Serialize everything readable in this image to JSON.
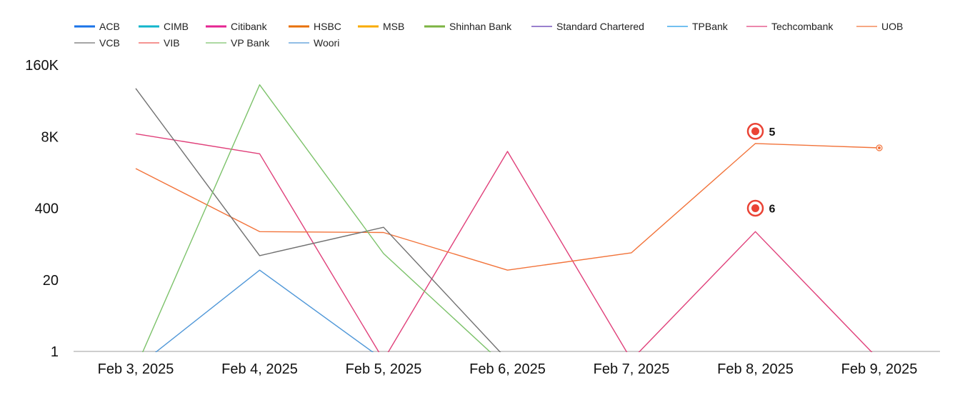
{
  "chart_data": {
    "type": "line",
    "title": "",
    "xlabel": "",
    "ylabel": "",
    "y_scale": "log",
    "y_ticks": [
      1,
      20,
      400,
      8000,
      160000
    ],
    "y_tick_labels": [
      "1",
      "20",
      "400",
      "8K",
      "160K"
    ],
    "ylim": [
      1,
      160000
    ],
    "grid": false,
    "legend_position": "top",
    "categories": [
      "Feb 3, 2025",
      "Feb 4, 2025",
      "Feb 5, 2025",
      "Feb 6, 2025",
      "Feb 7, 2025",
      "Feb 8, 2025",
      "Feb 9, 2025"
    ],
    "series": [
      {
        "name": "ACB",
        "color": "#1a73e8",
        "legend_style": "bold",
        "values": [
          null,
          null,
          null,
          null,
          null,
          null,
          null
        ]
      },
      {
        "name": "CIMB",
        "color": "#12b5cb",
        "legend_style": "bold",
        "values": [
          null,
          null,
          null,
          null,
          null,
          null,
          null
        ]
      },
      {
        "name": "Citibank",
        "color": "#e52592",
        "legend_style": "bold",
        "values": [
          null,
          null,
          null,
          null,
          null,
          null,
          null
        ]
      },
      {
        "name": "HSBC",
        "color": "#e8710a",
        "legend_style": "bold",
        "values": [
          null,
          null,
          null,
          null,
          null,
          null,
          null
        ]
      },
      {
        "name": "MSB",
        "color": "#f9ab00",
        "legend_style": "bold",
        "values": [
          null,
          null,
          null,
          null,
          null,
          null,
          null
        ]
      },
      {
        "name": "Shinhan Bank",
        "color": "#7cb342",
        "legend_style": "bold",
        "values": [
          null,
          null,
          null,
          null,
          null,
          null,
          null
        ]
      },
      {
        "name": "Standard Chartered",
        "color": "#5e35b1",
        "legend_style": "thin",
        "values": [
          null,
          null,
          null,
          null,
          null,
          null,
          null
        ]
      },
      {
        "name": "TPBank",
        "color": "#1e9be8",
        "legend_style": "thin",
        "values": [
          null,
          null,
          null,
          null,
          null,
          null,
          null
        ]
      },
      {
        "name": "Techcombank",
        "color": "#e0407a",
        "legend_style": "thin",
        "values": [
          9000,
          3900,
          0.7,
          4300,
          0.7,
          150,
          0.7
        ]
      },
      {
        "name": "UOB",
        "color": "#f2733a",
        "legend_style": "thin",
        "values": [
          2100,
          150,
          145,
          30,
          62,
          6000,
          5000
        ]
      },
      {
        "name": "VCB",
        "color": "#707070",
        "legend_style": "thin",
        "values": [
          60000,
          55,
          180,
          0.7,
          null,
          null,
          null
        ]
      },
      {
        "name": "VIB",
        "color": "#ef5350",
        "legend_style": "thin",
        "values": [
          null,
          null,
          null,
          null,
          null,
          null,
          null
        ]
      },
      {
        "name": "VP Bank",
        "color": "#7cc26a",
        "legend_style": "thin",
        "values": [
          0.5,
          70000,
          60,
          0.5,
          null,
          null,
          null
        ]
      },
      {
        "name": "Woori",
        "color": "#4f97d8",
        "legend_style": "thin",
        "values": [
          0.5,
          30,
          0.7,
          null,
          null,
          null,
          null
        ]
      }
    ],
    "annotations": [
      {
        "label": "5",
        "series": "UOB",
        "x": "Feb 8, 2025",
        "y": 10000,
        "color": "#ea4335"
      },
      {
        "label": "6",
        "series": "Techcombank",
        "x": "Feb 8, 2025",
        "y": 400,
        "color": "#ea4335"
      }
    ],
    "end_point_marker": {
      "series": "UOB",
      "x": "Feb 9, 2025",
      "y": 5000,
      "color": "#f2733a"
    }
  }
}
